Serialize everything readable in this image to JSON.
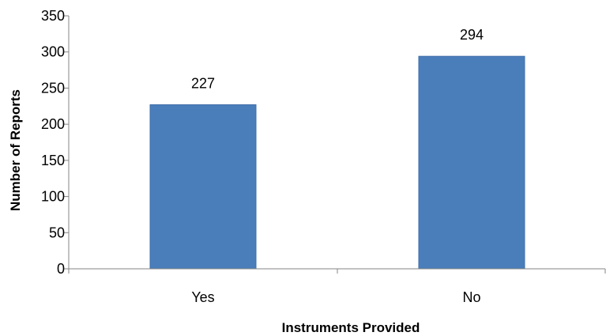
{
  "chart_data": {
    "type": "bar",
    "title": "",
    "xlabel": "Instruments Provided",
    "ylabel": "Number of Reports",
    "categories": [
      "Yes",
      "No"
    ],
    "values": [
      227,
      294
    ],
    "data_labels": [
      "227",
      "294"
    ],
    "ylim": [
      0,
      350
    ],
    "yticks": [
      0,
      50,
      100,
      150,
      200,
      250,
      300,
      350
    ],
    "ytick_labels": [
      "0",
      "50",
      "100",
      "150",
      "200",
      "250",
      "300",
      "350"
    ],
    "grid": false,
    "legend": "none",
    "bar_color": "#4A7EBB",
    "bar_edge_color": "#3F6FA8",
    "axis_color": "#868686"
  }
}
